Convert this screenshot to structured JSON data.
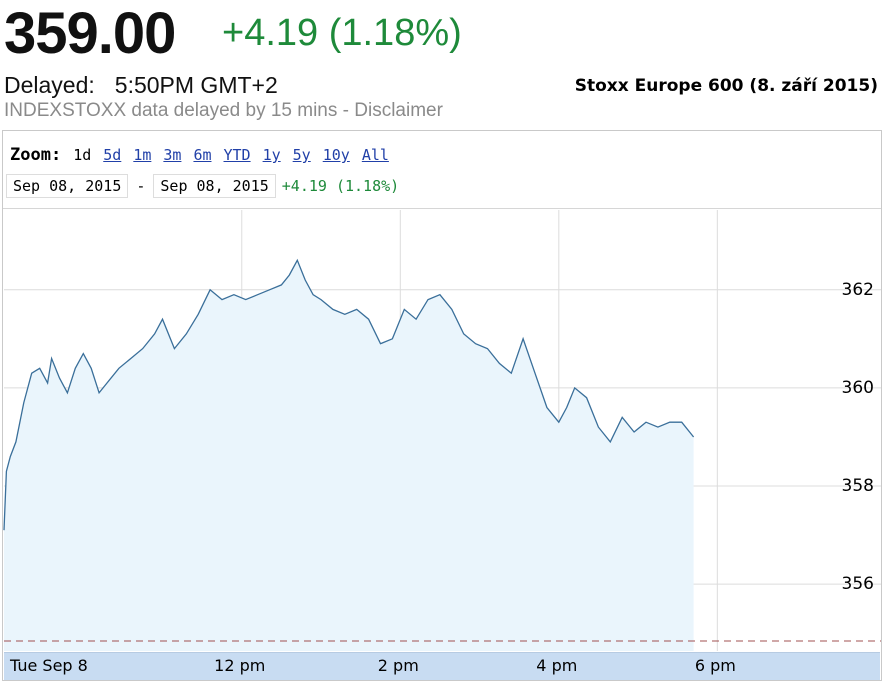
{
  "quote": {
    "price": "359.00",
    "change": "+4.19 (1.18%)",
    "delayed_label": "Delayed:",
    "delayed_time": "5:50PM GMT+2",
    "disclaimer": "INDEXSTOXX data delayed by 15 mins - Disclaimer"
  },
  "caption": "Stoxx Europe 600 (8. září 2015)",
  "zoom": {
    "label": "Zoom:",
    "options": [
      "1d",
      "5d",
      "1m",
      "3m",
      "6m",
      "YTD",
      "1y",
      "5y",
      "10y",
      "All"
    ],
    "selected": "1d"
  },
  "range": {
    "from": "Sep 08, 2015",
    "separator": "-",
    "to": "Sep 08, 2015",
    "change": "+4.19 (1.18%)"
  },
  "colors": {
    "up": "#1e8a3a",
    "line": "#3a6f9a",
    "area_fill": "#eaf5fc",
    "axis_band": "#c8dcf2",
    "baseline_dash": "#a05050"
  },
  "chart_data": {
    "type": "area",
    "title": "",
    "xlabel": "",
    "ylabel": "",
    "y_ticks": [
      "356",
      "358",
      "360",
      "362"
    ],
    "x_ticks": [
      "Tue Sep 8",
      "12 pm",
      "2 pm",
      "4 pm",
      "6 pm"
    ],
    "ylim": [
      354.8,
      363.3
    ],
    "xlim": [
      9.0,
      19.8
    ],
    "grid": "horizontal and vertical",
    "previous_close_dashed": true,
    "series": [
      {
        "x": [
          9.0,
          9.03,
          9.08,
          9.15,
          9.25,
          9.35,
          9.45,
          9.55,
          9.6,
          9.7,
          9.8,
          9.9,
          10.0,
          10.1,
          10.2,
          10.3,
          10.45,
          10.6,
          10.75,
          10.9,
          11.0,
          11.15,
          11.3,
          11.45,
          11.6,
          11.75,
          11.9,
          12.05,
          12.2,
          12.35,
          12.5,
          12.6,
          12.7,
          12.8,
          12.9,
          13.0,
          13.15,
          13.3,
          13.45,
          13.6,
          13.75,
          13.9,
          14.05,
          14.2,
          14.35,
          14.5,
          14.65,
          14.8,
          14.95,
          15.1,
          15.25,
          15.4,
          15.55,
          15.7,
          15.85,
          16.0,
          16.1,
          16.2,
          16.35,
          16.5,
          16.65,
          16.8,
          16.95,
          17.1,
          17.25,
          17.4,
          17.55,
          17.7
        ],
        "y": [
          357.1,
          358.3,
          358.6,
          358.9,
          359.7,
          360.3,
          360.4,
          360.1,
          360.6,
          360.2,
          359.9,
          360.4,
          360.7,
          360.4,
          359.9,
          360.1,
          360.4,
          360.6,
          360.8,
          361.1,
          361.4,
          360.8,
          361.1,
          361.5,
          362.0,
          361.8,
          361.9,
          361.8,
          361.9,
          362.0,
          362.1,
          362.3,
          362.6,
          362.2,
          361.9,
          361.8,
          361.6,
          361.5,
          361.6,
          361.4,
          360.9,
          361.0,
          361.6,
          361.4,
          361.8,
          361.9,
          361.6,
          361.1,
          360.9,
          360.8,
          360.5,
          360.3,
          361.0,
          360.3,
          359.6,
          359.3,
          359.6,
          360.0,
          359.8,
          359.2,
          358.9,
          359.4,
          359.1,
          359.3,
          359.2,
          359.3,
          359.3,
          359.0
        ]
      }
    ]
  }
}
